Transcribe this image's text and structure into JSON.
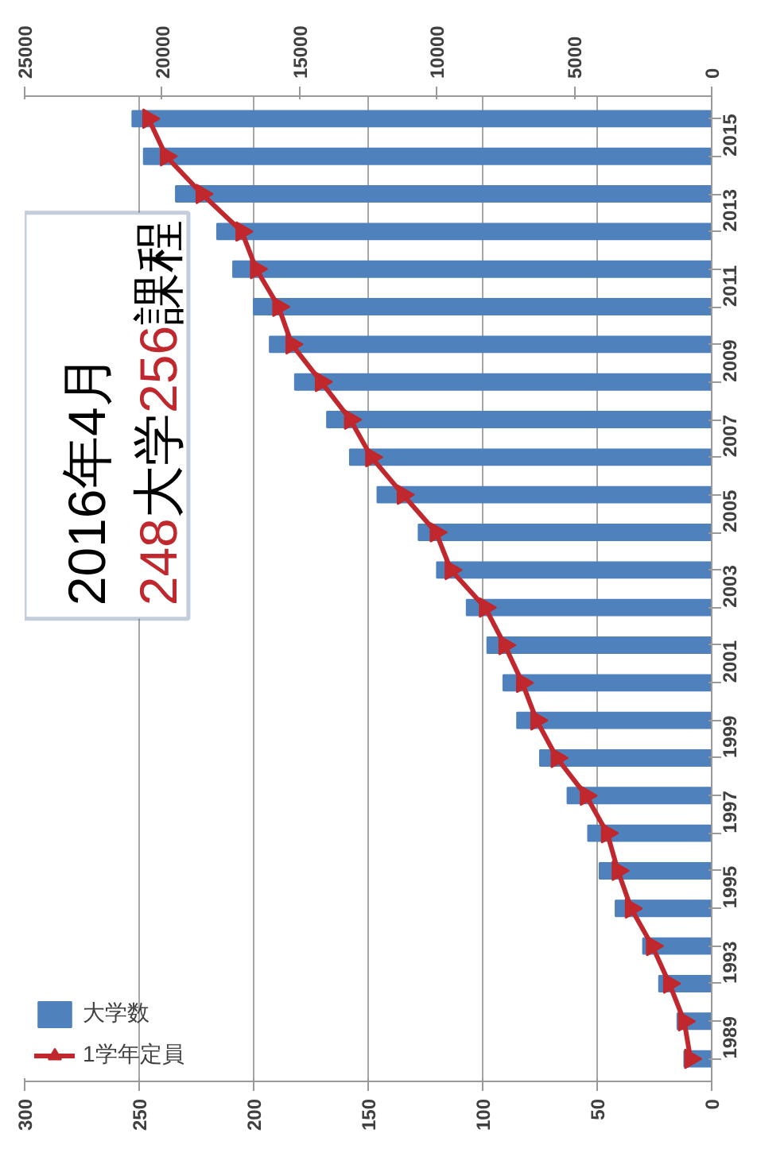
{
  "chart_data": {
    "type": "bar",
    "orientation": "horizontal",
    "categories": [
      null,
      "2015",
      null,
      "2013",
      null,
      "2011",
      null,
      "2009",
      null,
      "2007",
      null,
      "2005",
      null,
      "2003",
      null,
      "2001",
      null,
      "1999",
      null,
      "1997",
      null,
      "1995",
      null,
      "1993",
      null,
      "1989"
    ],
    "series": [
      {
        "name": "大学数",
        "color": "#4f81bd",
        "values": [
          253,
          248,
          234,
          216,
          209,
          200,
          193,
          182,
          168,
          158,
          146,
          128,
          120,
          107,
          98,
          91,
          85,
          75,
          63,
          54,
          49,
          42,
          30,
          23,
          15,
          12
        ]
      },
      {
        "name": "1学年定員",
        "type": "line",
        "axis": "x2",
        "color": "#c0282d",
        "values": [
          20490,
          19850,
          18550,
          17100,
          16570,
          15760,
          15280,
          14210,
          13150,
          12380,
          11230,
          10030,
          9490,
          8240,
          7530,
          6890,
          6370,
          5630,
          4570,
          3800,
          3410,
          2930,
          2160,
          1540,
          1000,
          770
        ]
      }
    ],
    "xlim": [
      300,
      0
    ],
    "xticks": [
      0,
      50,
      100,
      150,
      200,
      250,
      300
    ],
    "x2lim": [
      25000,
      0
    ],
    "x2ticks": [
      0,
      5000,
      10000,
      15000,
      20000,
      25000
    ],
    "grid": "x",
    "legend": "bottom left",
    "marker": "triangle",
    "annotations": [
      "2016年4月",
      "248大学256課程"
    ]
  }
}
